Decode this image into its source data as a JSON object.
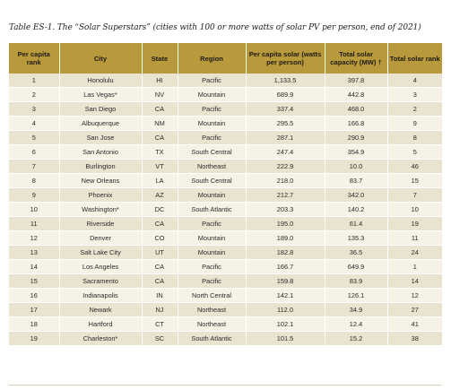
{
  "caption": "Table ES-1. The “Solar Superstars” (cities with 100 or more watts of solar PV per person, end of 2021)",
  "headers": {
    "per_capita_rank": "Per capita rank",
    "city": "City",
    "state": "State",
    "region": "Region",
    "per_capita_solar": "Per capita solar (watts per person)",
    "total_solar_capacity": "Total solar capacity (MW) †",
    "total_solar_rank": "Total solar rank"
  },
  "rows": [
    {
      "rank": "1",
      "city": "Honolulu",
      "state": "HI",
      "region": "Pacific",
      "per_capita": "1,133.5",
      "capacity": "397.8",
      "total_rank": "4"
    },
    {
      "rank": "2",
      "city": "Las Vegas*",
      "state": "NV",
      "region": "Mountain",
      "per_capita": "689.9",
      "capacity": "442.8",
      "total_rank": "3"
    },
    {
      "rank": "3",
      "city": "San Diego",
      "state": "CA",
      "region": "Pacific",
      "per_capita": "337.4",
      "capacity": "468.0",
      "total_rank": "2"
    },
    {
      "rank": "4",
      "city": "Albuquerque",
      "state": "NM",
      "region": "Mountain",
      "per_capita": "295.5",
      "capacity": "166.8",
      "total_rank": "9"
    },
    {
      "rank": "5",
      "city": "San Jose",
      "state": "CA",
      "region": "Pacific",
      "per_capita": "287.1",
      "capacity": "290.9",
      "total_rank": "8"
    },
    {
      "rank": "6",
      "city": "San Antonio",
      "state": "TX",
      "region": "South Central",
      "per_capita": "247.4",
      "capacity": "354.9",
      "total_rank": "5"
    },
    {
      "rank": "7",
      "city": "Burlington",
      "state": "VT",
      "region": "Northeast",
      "per_capita": "222.9",
      "capacity": "10.0",
      "total_rank": "46"
    },
    {
      "rank": "8",
      "city": "New Orleans",
      "state": "LA",
      "region": "South Central",
      "per_capita": "218.0",
      "capacity": "83.7",
      "total_rank": "15"
    },
    {
      "rank": "9",
      "city": "Phoenix",
      "state": "AZ",
      "region": "Mountain",
      "per_capita": "212.7",
      "capacity": "342.0",
      "total_rank": "7"
    },
    {
      "rank": "10",
      "city": "Washington*",
      "state": "DC",
      "region": "South Atlantic",
      "per_capita": "203.3",
      "capacity": "140.2",
      "total_rank": "10"
    },
    {
      "rank": "11",
      "city": "Riverside",
      "state": "CA",
      "region": "Pacific",
      "per_capita": "195.0",
      "capacity": "61.4",
      "total_rank": "19"
    },
    {
      "rank": "12",
      "city": "Denver",
      "state": "CO",
      "region": "Mountain",
      "per_capita": "189.0",
      "capacity": "135.3",
      "total_rank": "11"
    },
    {
      "rank": "13",
      "city": "Salt Lake City",
      "state": "UT",
      "region": "Mountain",
      "per_capita": "182.8",
      "capacity": "36.5",
      "total_rank": "24"
    },
    {
      "rank": "14",
      "city": "Los Angeles",
      "state": "CA",
      "region": "Pacific",
      "per_capita": "166.7",
      "capacity": "649.9",
      "total_rank": "1"
    },
    {
      "rank": "15",
      "city": "Sacramento",
      "state": "CA",
      "region": "Pacific",
      "per_capita": "159.8",
      "capacity": "83.9",
      "total_rank": "14"
    },
    {
      "rank": "16",
      "city": "Indianapolis",
      "state": "IN",
      "region": "North Central",
      "per_capita": "142.1",
      "capacity": "126.1",
      "total_rank": "12"
    },
    {
      "rank": "17",
      "city": "Newark",
      "state": "NJ",
      "region": "Northeast",
      "per_capita": "112.0",
      "capacity": "34.9",
      "total_rank": "27"
    },
    {
      "rank": "18",
      "city": "Hartford",
      "state": "CT",
      "region": "Northeast",
      "per_capita": "102.1",
      "capacity": "12.4",
      "total_rank": "41"
    },
    {
      "rank": "19",
      "city": "Charleston*",
      "state": "SC",
      "region": "South Atlantic",
      "per_capita": "101.5",
      "capacity": "15.2",
      "total_rank": "38"
    }
  ],
  "colors": {
    "header_bg": "#b89a3c",
    "row_odd": "#eae3cf",
    "row_even": "#f6f2e6"
  }
}
